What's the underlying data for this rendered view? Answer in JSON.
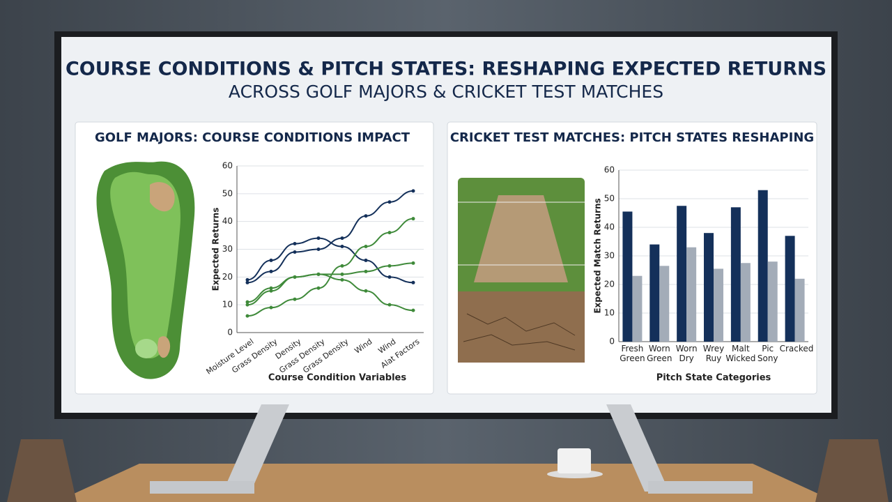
{
  "title": "COURSE CONDITIONS & PITCH STATES: RESHAPING EXPECTED RETURNS",
  "subtitle": "ACROSS GOLF MAJORS & CRICKET TEST MATCHES",
  "chart_data": [
    {
      "type": "line",
      "title": "GOLF MAJORS: COURSE CONDITIONS IMPACT",
      "x_label": "Course Condition Variables",
      "y_label": "Expected Returns",
      "categories": [
        "Moisture Level",
        "Grass Density",
        "Density",
        "Grass Density",
        "Grass Density",
        "Wind",
        "Wind",
        "Alat Factors"
      ],
      "series": [
        {
          "color": "#14305a",
          "values": [
            18,
            22,
            29,
            30,
            34,
            42,
            47,
            51
          ]
        },
        {
          "color": "#14305a",
          "values": [
            19,
            26,
            32,
            34,
            31,
            26,
            20,
            18
          ]
        },
        {
          "color": "#3f8a3a",
          "values": [
            11,
            16,
            20,
            21,
            21,
            22,
            24,
            25
          ]
        },
        {
          "color": "#3f8a3a",
          "values": [
            10,
            15,
            20,
            21,
            19,
            15,
            10,
            8
          ]
        },
        {
          "color": "#3f8a3a",
          "values": [
            6,
            9,
            12,
            16,
            24,
            31,
            36,
            41
          ]
        }
      ],
      "ylim": [
        0,
        60
      ],
      "yticks": [
        0,
        10,
        20,
        30,
        40,
        50,
        60
      ],
      "grid": true
    },
    {
      "type": "bar",
      "title": "CRICKET TEST MATCHES: PITCH STATES RESHAPING",
      "x_label": "Pitch State Categories",
      "y_label": "Expected Match Returns",
      "categories": [
        "Fresh Green",
        "Worn Green",
        "Worn Dry",
        "Wrey Ruy",
        "Malt Wicked",
        "Pic Sony",
        "Cracked"
      ],
      "series": [
        {
          "color": "#14305a",
          "values": [
            45.5,
            34,
            47.5,
            38,
            47,
            53,
            37
          ]
        },
        {
          "color": "#a3acb8",
          "values": [
            23,
            26.5,
            33,
            25.5,
            27.5,
            28,
            22
          ]
        }
      ],
      "ylim": [
        0,
        60
      ],
      "yticks": [
        0,
        10,
        20,
        30,
        40,
        50,
        60
      ],
      "grid": true
    }
  ]
}
